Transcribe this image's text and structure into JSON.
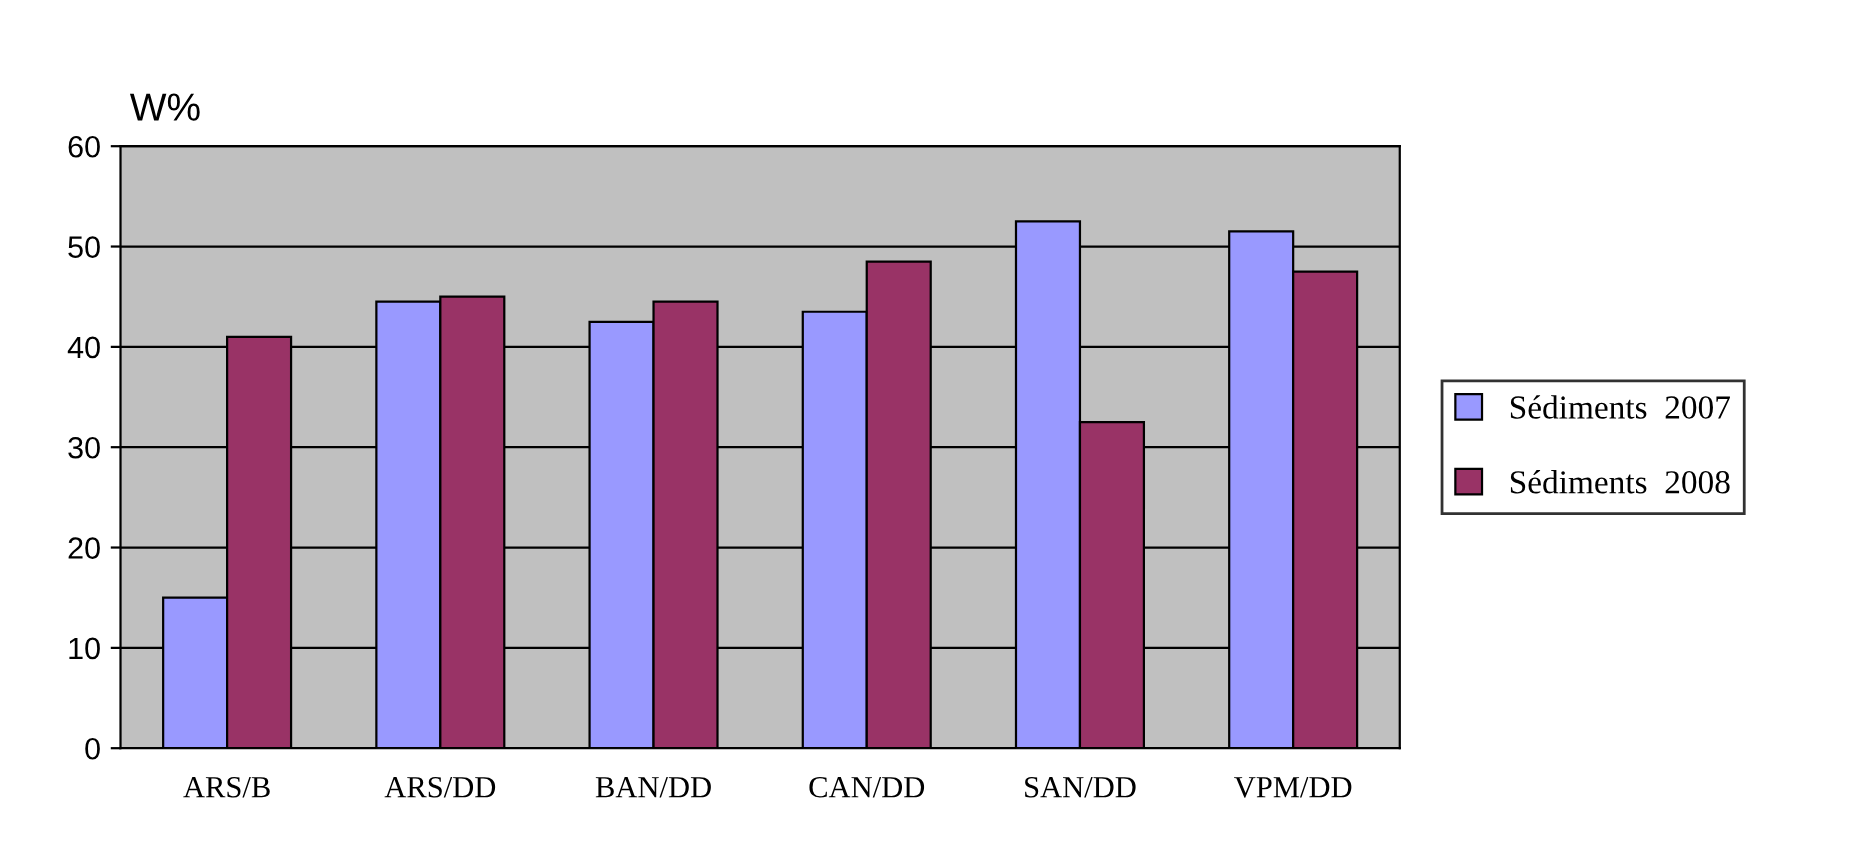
{
  "chart_data": {
    "type": "bar",
    "ylabel": "W%",
    "categories": [
      "ARS/B",
      "ARS/DD",
      "BAN/DD",
      "CAN/DD",
      "SAN/DD",
      "VPM/DD"
    ],
    "series": [
      {
        "name": "Sédiments  2007",
        "color": "#9999ff",
        "values": [
          15,
          44.5,
          42.5,
          43.5,
          52.5,
          51.5
        ]
      },
      {
        "name": "Sédiments  2008",
        "color": "#993366",
        "values": [
          41,
          45,
          44.5,
          48.5,
          32.5,
          47.5
        ]
      }
    ],
    "ylim": [
      0,
      60
    ],
    "yticks": [
      0,
      10,
      20,
      30,
      40,
      50,
      60
    ],
    "grid": "y",
    "legend": "right"
  }
}
